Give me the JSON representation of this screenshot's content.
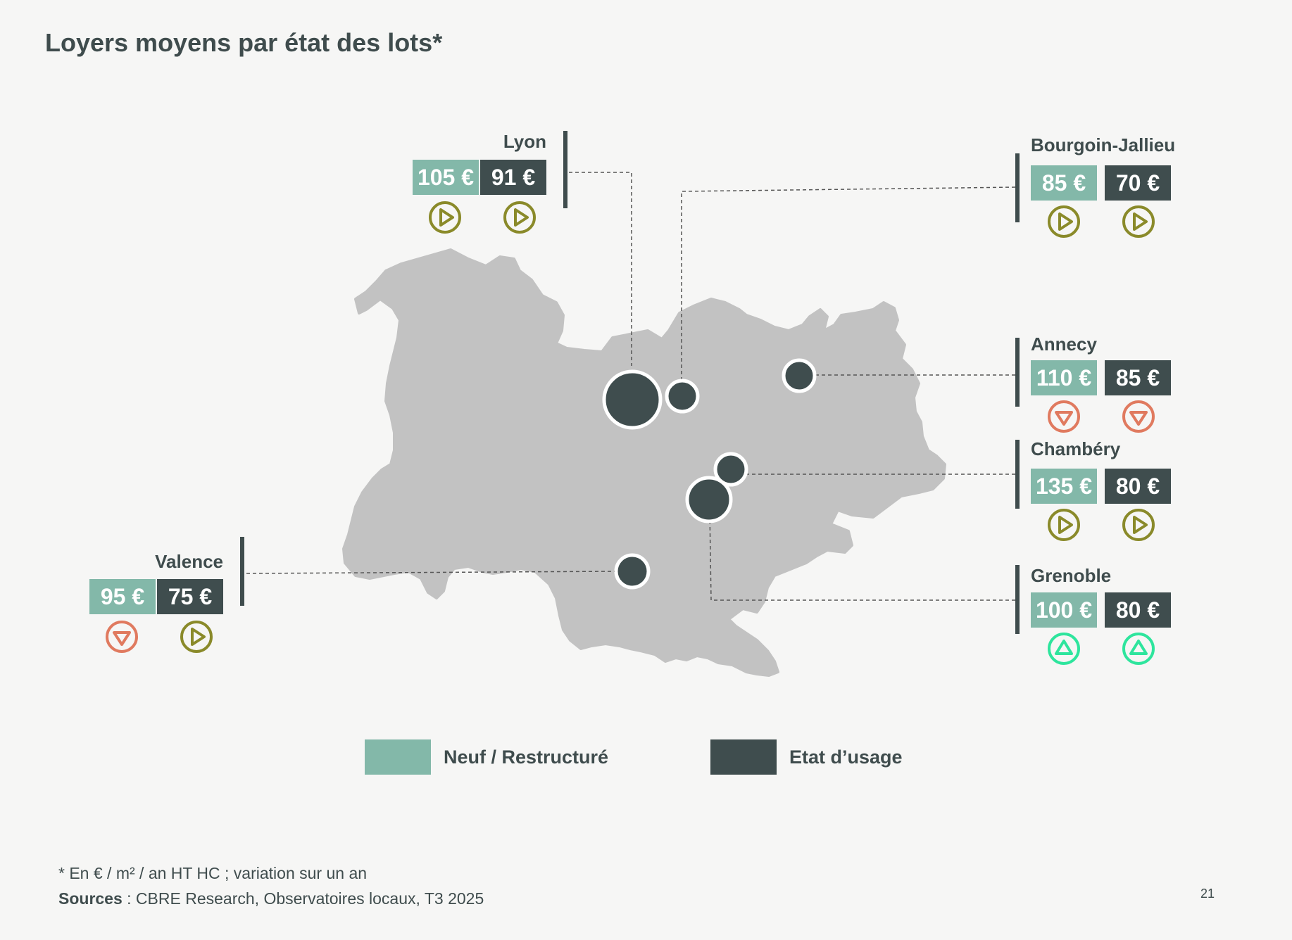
{
  "title": "Loyers moyens par état des lots*",
  "colors": {
    "neuf": "#83b8a9",
    "usage": "#3f4d4e",
    "region": "#c2c2c2",
    "stable": "#8a8a2a",
    "down": "#e07a5f",
    "up": "#2ee59d"
  },
  "cities": [
    {
      "name": "Lyon",
      "neuf": "105 €",
      "usage": "91 €",
      "trend_neuf": "stable",
      "trend_usage": "stable"
    },
    {
      "name": "Bourgoin-Jallieu",
      "neuf": "85 €",
      "usage": "70 €",
      "trend_neuf": "stable",
      "trend_usage": "stable"
    },
    {
      "name": "Annecy",
      "neuf": "110 €",
      "usage": "85 €",
      "trend_neuf": "down",
      "trend_usage": "down"
    },
    {
      "name": "Chambéry",
      "neuf": "135 €",
      "usage": "80 €",
      "trend_neuf": "stable",
      "trend_usage": "stable"
    },
    {
      "name": "Grenoble",
      "neuf": "100 €",
      "usage": "80 €",
      "trend_neuf": "up",
      "trend_usage": "up"
    },
    {
      "name": "Valence",
      "neuf": "95 €",
      "usage": "75 €",
      "trend_neuf": "down",
      "trend_usage": "stable"
    }
  ],
  "legend": {
    "neuf": "Neuf / Restructuré",
    "usage": "Etat d’usage"
  },
  "footnote": "* En € / m² / an HT HC ; variation sur un an",
  "sources": {
    "label": "Sources",
    "text": " : CBRE Research, Observatoires locaux, T3 2025"
  },
  "page_number": "21"
}
